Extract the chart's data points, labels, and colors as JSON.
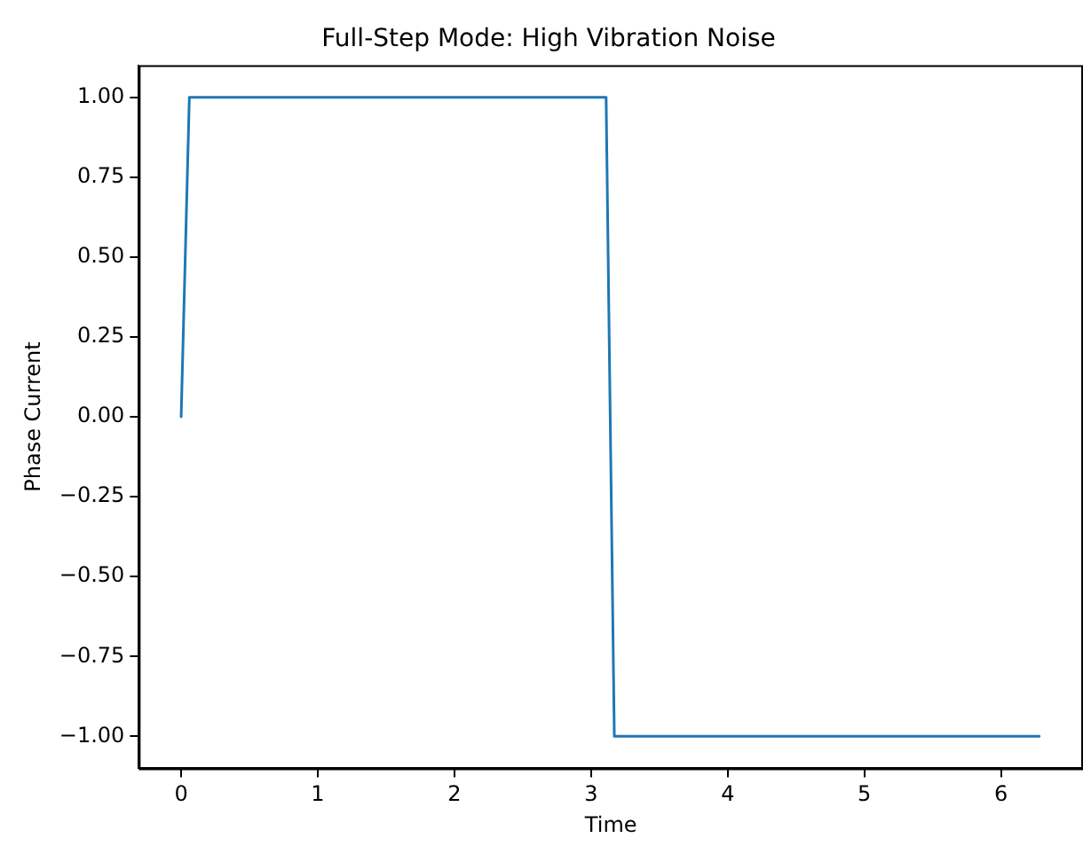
{
  "chart_data": {
    "type": "line",
    "title": "Full-Step Mode: High Vibration Noise",
    "xlabel": "Time",
    "ylabel": "Phase Current",
    "x": [
      0,
      0.06,
      3.11,
      3.17,
      6.28
    ],
    "series": [
      {
        "color": "#1f77b4",
        "values": [
          0,
          1,
          1,
          -1,
          -1
        ]
      }
    ],
    "xlim": [
      -0.31,
      6.6
    ],
    "xticks": [
      0,
      1,
      2,
      3,
      4,
      5,
      6
    ],
    "ylim": [
      -1.1,
      1.1
    ],
    "yticks": [
      {
        "value": -1,
        "label": "−1.00"
      },
      {
        "value": -0.75,
        "label": "−0.75"
      },
      {
        "value": -0.5,
        "label": "−0.50"
      },
      {
        "value": -0.25,
        "label": "−0.25"
      },
      {
        "value": 0,
        "label": "0.00"
      },
      {
        "value": 0.25,
        "label": "0.25"
      },
      {
        "value": 0.5,
        "label": "0.50"
      },
      {
        "value": 0.75,
        "label": "0.75"
      },
      {
        "value": 1,
        "label": "1.00"
      }
    ],
    "grid": false,
    "legend": false,
    "marker": "none",
    "line_style": "solid"
  }
}
